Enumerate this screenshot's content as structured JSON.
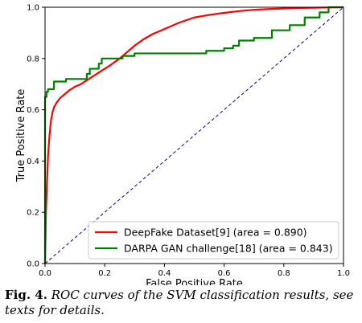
{
  "chart_data": {
    "type": "line",
    "title": "",
    "xlabel": "False Positive Rate",
    "ylabel": "True Positive Rate",
    "xlim": [
      0,
      1
    ],
    "ylim": [
      0,
      1
    ],
    "xticks": [
      "0.0",
      "0.2",
      "0.4",
      "0.6",
      "0.8",
      "1.0"
    ],
    "yticks": [
      "0.0",
      "0.2",
      "0.4",
      "0.6",
      "0.8",
      "1.0"
    ],
    "grid": false,
    "legend_position": "bottom-right",
    "series": [
      {
        "name": "DeepFake Dataset[9] (area = 0.890)",
        "color": "#ff0000",
        "x": [
          0,
          0.003,
          0.006,
          0.01,
          0.015,
          0.02,
          0.025,
          0.03,
          0.04,
          0.05,
          0.06,
          0.07,
          0.08,
          0.1,
          0.12,
          0.14,
          0.16,
          0.18,
          0.2,
          0.22,
          0.25,
          0.28,
          0.3,
          0.33,
          0.36,
          0.4,
          0.45,
          0.5,
          0.55,
          0.6,
          0.65,
          0.7,
          0.75,
          0.8,
          0.85,
          0.9,
          0.95,
          1.0
        ],
        "y": [
          0,
          0.2,
          0.3,
          0.42,
          0.5,
          0.56,
          0.59,
          0.61,
          0.63,
          0.645,
          0.655,
          0.665,
          0.675,
          0.69,
          0.7,
          0.715,
          0.73,
          0.745,
          0.76,
          0.775,
          0.8,
          0.83,
          0.85,
          0.875,
          0.895,
          0.915,
          0.94,
          0.96,
          0.97,
          0.978,
          0.985,
          0.99,
          0.993,
          0.995,
          0.997,
          0.998,
          0.999,
          1.0
        ]
      },
      {
        "name": "DARPA GAN challenge[18] (area = 0.843)",
        "color": "#008000",
        "x": [
          0,
          0,
          0.005,
          0.005,
          0.01,
          0.01,
          0.03,
          0.03,
          0.07,
          0.07,
          0.14,
          0.14,
          0.15,
          0.15,
          0.18,
          0.18,
          0.19,
          0.19,
          0.26,
          0.26,
          0.3,
          0.3,
          0.54,
          0.54,
          0.6,
          0.6,
          0.63,
          0.63,
          0.65,
          0.65,
          0.7,
          0.7,
          0.76,
          0.76,
          0.82,
          0.82,
          0.87,
          0.87,
          0.92,
          0.92,
          0.95,
          0.95,
          1.0
        ],
        "y": [
          0,
          0.65,
          0.65,
          0.67,
          0.67,
          0.68,
          0.68,
          0.71,
          0.71,
          0.72,
          0.72,
          0.74,
          0.74,
          0.76,
          0.76,
          0.78,
          0.78,
          0.8,
          0.8,
          0.81,
          0.81,
          0.82,
          0.82,
          0.83,
          0.83,
          0.84,
          0.84,
          0.85,
          0.85,
          0.87,
          0.87,
          0.88,
          0.88,
          0.91,
          0.91,
          0.93,
          0.93,
          0.96,
          0.96,
          0.98,
          0.98,
          1.0,
          1.0
        ]
      },
      {
        "name": "",
        "color": "#00008b",
        "style": "dashed",
        "x": [
          0,
          1
        ],
        "y": [
          0,
          1
        ]
      }
    ]
  },
  "caption": {
    "label": "Fig. 4",
    "sep": ".",
    "text": " ROC curves of the SVM classification results, see texts for details."
  }
}
